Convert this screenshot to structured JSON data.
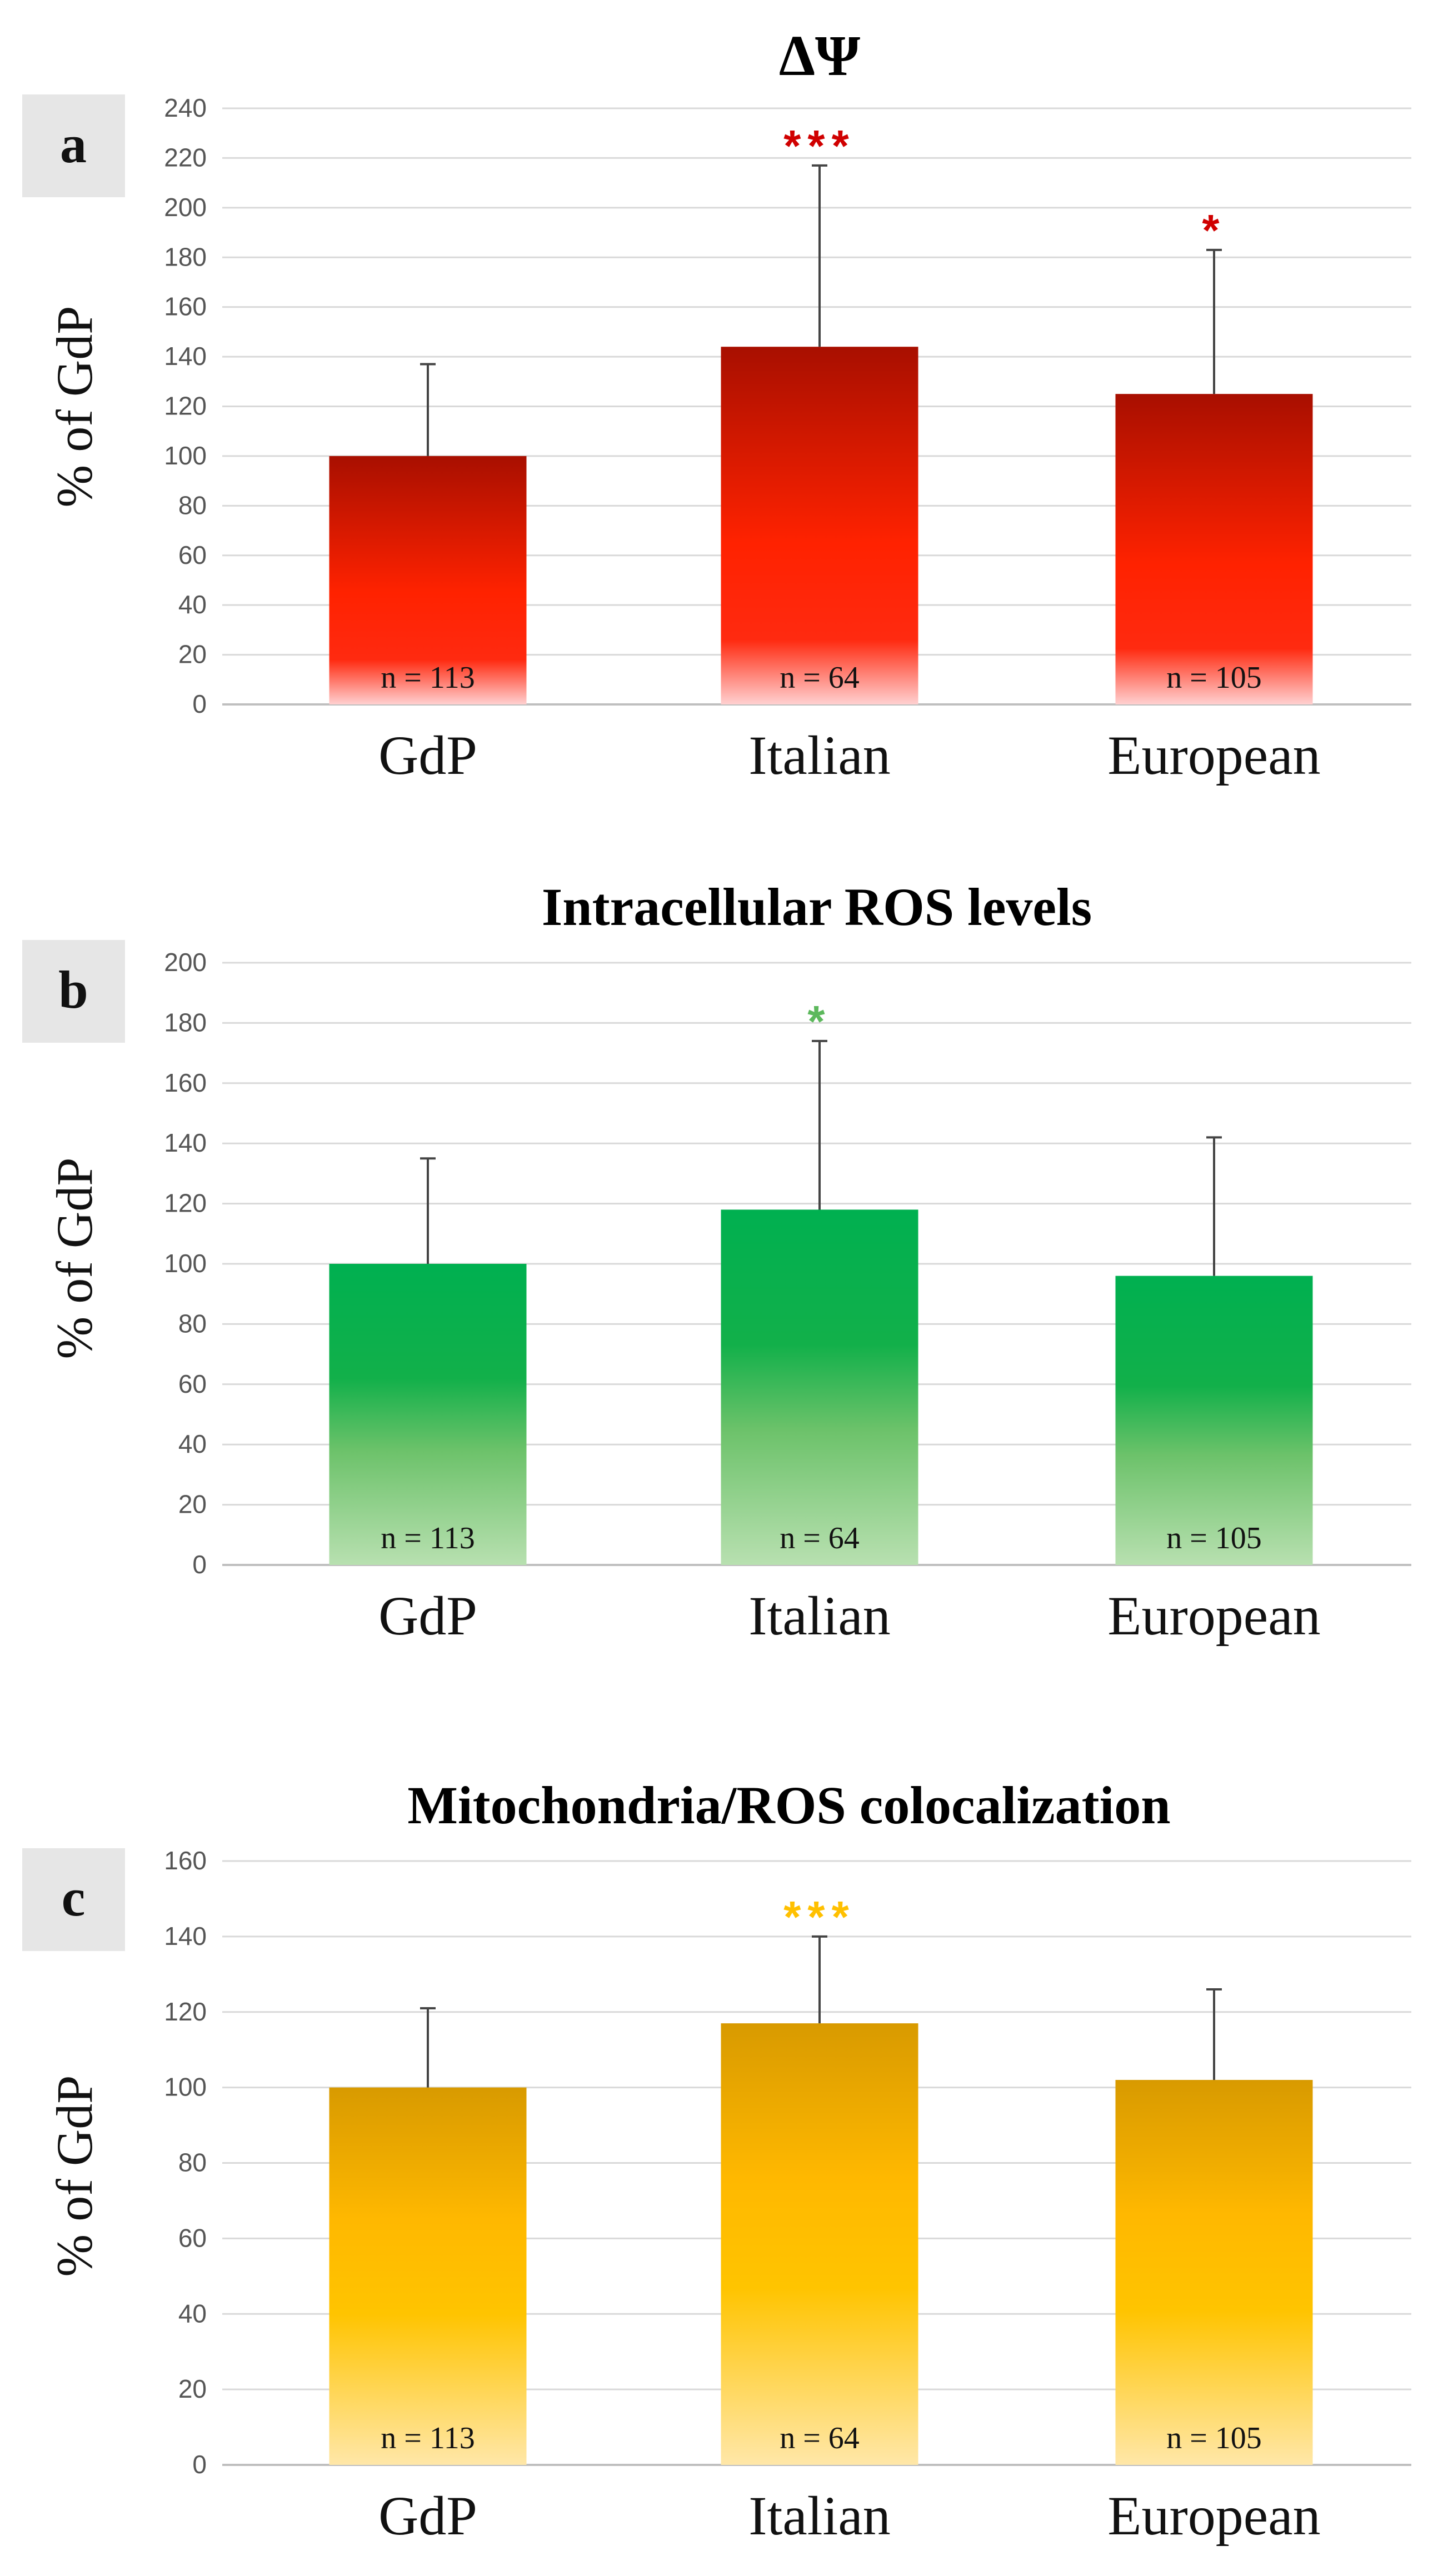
{
  "figure": {
    "panels": [
      {
        "letter": "a",
        "title": "ΔΨ",
        "ylabel": "% of GdP"
      },
      {
        "letter": "b",
        "title": "Intracellular ROS levels",
        "ylabel": "% of GdP"
      },
      {
        "letter": "c",
        "title": "Mitochondria/ROS colocalization",
        "ylabel": "% of GdP"
      }
    ]
  },
  "chart_data": [
    {
      "type": "bar",
      "panel": "a",
      "title": "ΔΨ",
      "ylabel": "% of GdP",
      "xlabel": "",
      "categories": [
        "GdP",
        "Italian",
        "European"
      ],
      "values": [
        100,
        144,
        125
      ],
      "errors": [
        37,
        73,
        58
      ],
      "n_labels": [
        "n = 113",
        "n = 64",
        "n = 105"
      ],
      "significance": [
        "",
        "***",
        "*"
      ],
      "ylim": [
        0,
        240
      ],
      "yticks": [
        0,
        20,
        40,
        60,
        80,
        100,
        120,
        140,
        160,
        180,
        200,
        220,
        240
      ],
      "colors": {
        "top": "#a80f00",
        "mid": "#ff2200",
        "bottom": "#ffd0d0",
        "star": "#d00000"
      }
    },
    {
      "type": "bar",
      "panel": "b",
      "title": "Intracellular ROS levels",
      "ylabel": "% of GdP",
      "xlabel": "",
      "categories": [
        "GdP",
        "Italian",
        "European"
      ],
      "values": [
        100,
        118,
        96
      ],
      "errors": [
        35,
        56,
        46
      ],
      "n_labels": [
        "n = 113",
        "n = 64",
        "n = 105"
      ],
      "significance": [
        "",
        "*",
        ""
      ],
      "ylim": [
        0,
        200
      ],
      "yticks": [
        0,
        20,
        40,
        60,
        80,
        100,
        120,
        140,
        160,
        180,
        200
      ],
      "colors": {
        "top": "#00b050",
        "mid": "#3db84a",
        "bottom": "#b8e0b0",
        "star": "#5cb85c"
      }
    },
    {
      "type": "bar",
      "panel": "c",
      "title": "Mitochondria/ROS colocalization",
      "ylabel": "% of GdP",
      "xlabel": "",
      "categories": [
        "GdP",
        "Italian",
        "European"
      ],
      "values": [
        100,
        117,
        102
      ],
      "errors": [
        21,
        23,
        24
      ],
      "n_labels": [
        "n = 113",
        "n = 64",
        "n = 105"
      ],
      "significance": [
        "",
        "***",
        ""
      ],
      "ylim": [
        0,
        160
      ],
      "yticks": [
        0,
        20,
        40,
        60,
        80,
        100,
        120,
        140,
        160
      ],
      "colors": {
        "top": "#d89a00",
        "mid": "#ffc000",
        "bottom": "#ffe7a8",
        "star": "#ffc000"
      }
    }
  ]
}
